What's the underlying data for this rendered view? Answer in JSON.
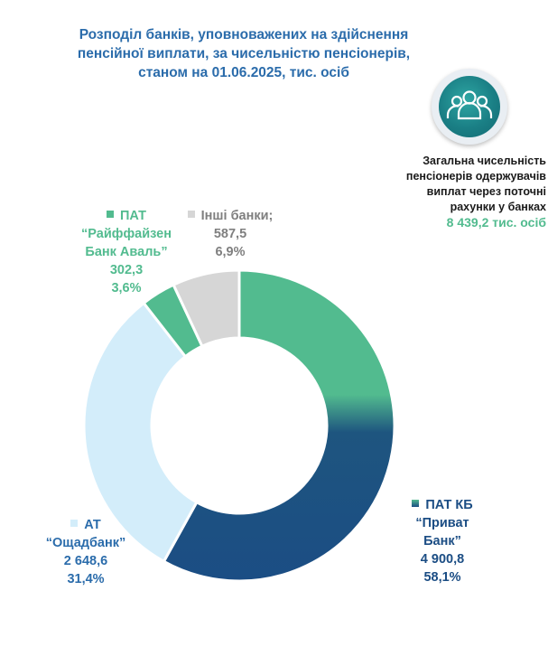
{
  "title_lines": [
    "Розподіл банків, уповноважених на здійснення",
    "пенсійної виплати, за чисельністю пенсіонерів,",
    "станом на 01.06.2025, тис. осіб"
  ],
  "total": {
    "lines": [
      "Загальна чисельність",
      "пенсіонерів одержувачів",
      "виплат через поточні",
      "рахунки у банках"
    ],
    "value": "8 439,2 тис. осіб",
    "icon": "people-group-icon"
  },
  "colors": {
    "title": "#2b6cab",
    "privat_top": "#52bb8f",
    "privat_bottom": "#1b4d84",
    "oschad": "#d3edfa",
    "raif": "#52bb8f",
    "other": "#d6d6d6"
  },
  "chart_data": {
    "type": "pie",
    "donut": true,
    "title": "Розподіл банків, уповноважених на здійснення пенсійної виплати, за чисельністю пенсіонерів, станом на 01.06.2025, тис. осіб",
    "unit": "тис. осіб",
    "slices": [
      {
        "key": "privat",
        "name_lines": [
          "ПАТ КБ",
          "“Приват",
          "Банк”"
        ],
        "value": 4900.8,
        "value_text": "4 900,8",
        "percent": 58.1,
        "percent_text": "58,1%",
        "color": "gradient"
      },
      {
        "key": "oschad",
        "name_lines": [
          "АТ",
          "“Ощадбанк”"
        ],
        "value": 2648.6,
        "value_text": "2 648,6",
        "percent": 31.4,
        "percent_text": "31,4%",
        "color": "#d3edfa"
      },
      {
        "key": "raif",
        "name_lines": [
          "ПАТ",
          "“Райффайзен",
          "Банк Аваль”"
        ],
        "value": 302.3,
        "value_text": "302,3",
        "percent": 3.6,
        "percent_text": "3,6%",
        "color": "#52bb8f"
      },
      {
        "key": "other",
        "name_lines": [
          "Інші банки;"
        ],
        "value": 587.5,
        "value_text": "587,5",
        "percent": 6.9,
        "percent_text": "6,9%",
        "color": "#d6d6d6"
      }
    ]
  }
}
